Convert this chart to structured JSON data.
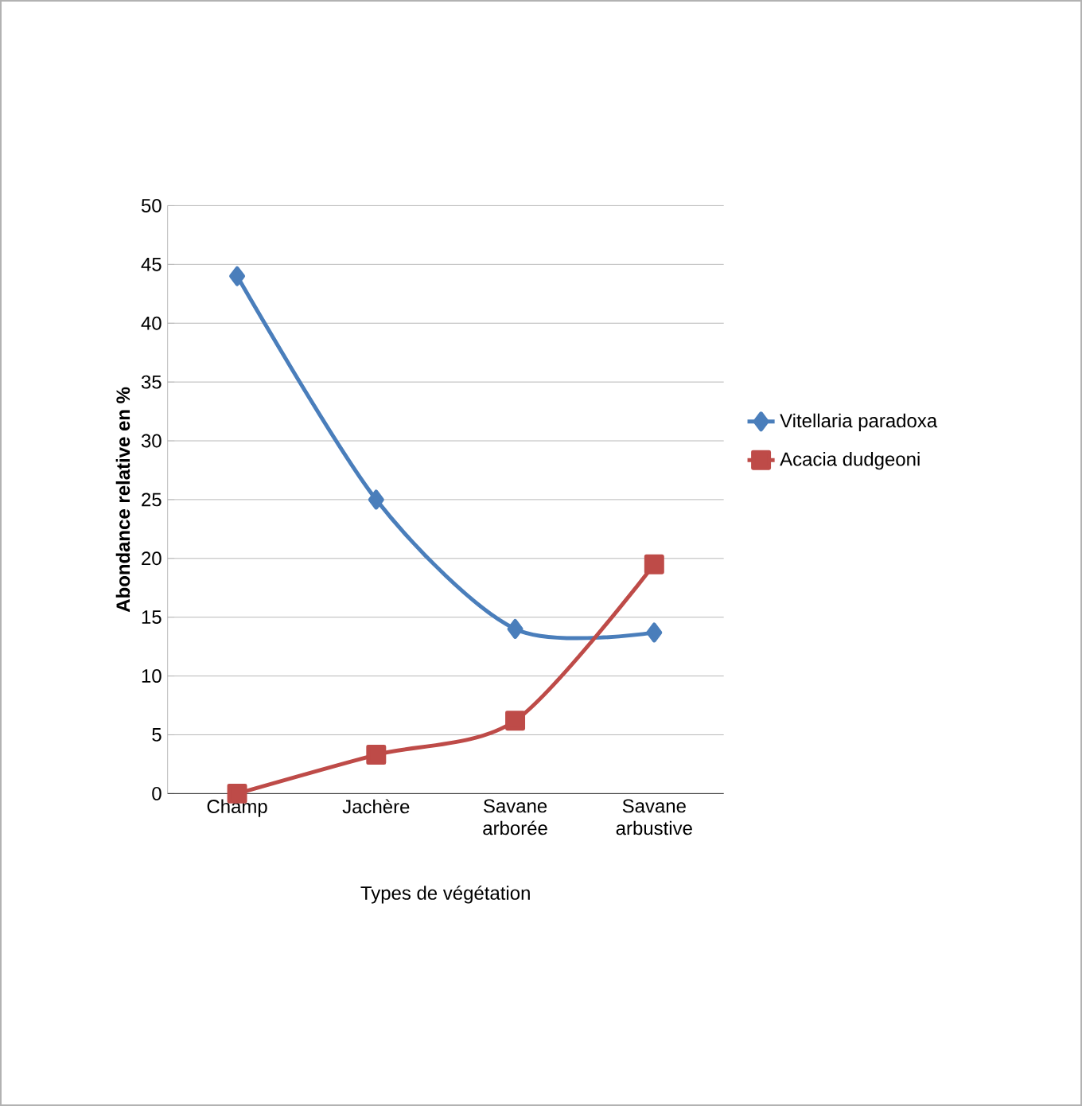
{
  "chart_data": {
    "type": "line",
    "xlabel": "Types de végétation",
    "ylabel": "Abondance relative en %",
    "categories": [
      "Champ",
      "Jachère",
      "Savane arborée",
      "Savane arbustive"
    ],
    "series": [
      {
        "name": "Vitellaria paradoxa",
        "color": "#4a7ebb",
        "values": [
          44,
          25,
          14,
          13.7
        ],
        "marker": "diamond"
      },
      {
        "name": "Acacia dudgeoni",
        "color": "#be4b48",
        "values": [
          0,
          3.3,
          6.2,
          19.5
        ],
        "marker": "square"
      }
    ],
    "ylim": [
      0,
      50
    ],
    "yticks": [
      0,
      5,
      10,
      15,
      20,
      25,
      30,
      35,
      40,
      45,
      50
    ],
    "grid": "y",
    "legend": "right",
    "line_style": "solid"
  }
}
